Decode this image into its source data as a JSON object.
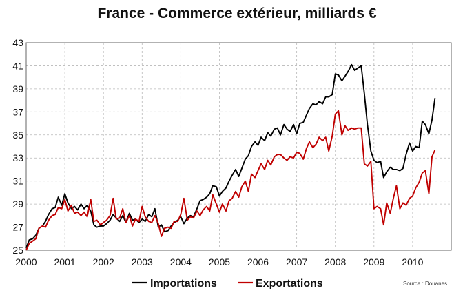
{
  "chart_data": {
    "type": "line",
    "title": "France - Commerce extérieur, milliards €",
    "xlabel": "",
    "ylabel": "",
    "xlim": [
      2000,
      2011
    ],
    "ylim": [
      25,
      43
    ],
    "x_ticks": [
      "2000",
      "2001",
      "2002",
      "2003",
      "2004",
      "2005",
      "2006",
      "2007",
      "2008",
      "2009",
      "2010"
    ],
    "y_ticks": [
      "25",
      "27",
      "29",
      "31",
      "33",
      "35",
      "37",
      "39",
      "41",
      "43"
    ],
    "grid": true,
    "legend_position": "bottom",
    "source": "Source : Douanes",
    "series": [
      {
        "name": "Importations",
        "color": "#000000",
        "points": [
          [
            2000.0,
            25.2
          ],
          [
            2000.08,
            25.9
          ],
          [
            2000.17,
            26.0
          ],
          [
            2000.25,
            26.3
          ],
          [
            2000.33,
            26.9
          ],
          [
            2000.42,
            27.1
          ],
          [
            2000.5,
            27.5
          ],
          [
            2000.58,
            28.1
          ],
          [
            2000.67,
            28.6
          ],
          [
            2000.75,
            28.7
          ],
          [
            2000.83,
            29.6
          ],
          [
            2000.92,
            28.9
          ],
          [
            2001.0,
            29.9
          ],
          [
            2001.08,
            29.1
          ],
          [
            2001.17,
            28.6
          ],
          [
            2001.25,
            28.8
          ],
          [
            2001.33,
            28.5
          ],
          [
            2001.42,
            29.0
          ],
          [
            2001.5,
            28.6
          ],
          [
            2001.58,
            28.9
          ],
          [
            2001.67,
            28.4
          ],
          [
            2001.75,
            27.2
          ],
          [
            2001.83,
            27.0
          ],
          [
            2001.92,
            27.1
          ],
          [
            2002.0,
            27.1
          ],
          [
            2002.08,
            27.3
          ],
          [
            2002.17,
            27.6
          ],
          [
            2002.25,
            28.1
          ],
          [
            2002.33,
            27.8
          ],
          [
            2002.42,
            27.5
          ],
          [
            2002.5,
            28.0
          ],
          [
            2002.58,
            27.4
          ],
          [
            2002.67,
            28.2
          ],
          [
            2002.75,
            27.6
          ],
          [
            2002.83,
            27.7
          ],
          [
            2002.92,
            27.4
          ],
          [
            2003.0,
            27.7
          ],
          [
            2003.08,
            27.5
          ],
          [
            2003.17,
            28.1
          ],
          [
            2003.25,
            27.9
          ],
          [
            2003.33,
            28.6
          ],
          [
            2003.42,
            27.0
          ],
          [
            2003.5,
            27.2
          ],
          [
            2003.58,
            26.6
          ],
          [
            2003.67,
            26.7
          ],
          [
            2003.75,
            27.1
          ],
          [
            2003.83,
            27.4
          ],
          [
            2003.92,
            27.6
          ],
          [
            2004.0,
            27.9
          ],
          [
            2004.08,
            27.3
          ],
          [
            2004.17,
            27.8
          ],
          [
            2004.25,
            28.0
          ],
          [
            2004.33,
            27.9
          ],
          [
            2004.42,
            28.6
          ],
          [
            2004.5,
            29.3
          ],
          [
            2004.58,
            29.4
          ],
          [
            2004.67,
            29.6
          ],
          [
            2004.75,
            29.9
          ],
          [
            2004.83,
            30.6
          ],
          [
            2004.92,
            30.5
          ],
          [
            2005.0,
            29.7
          ],
          [
            2005.08,
            30.1
          ],
          [
            2005.17,
            30.4
          ],
          [
            2005.25,
            31.0
          ],
          [
            2005.33,
            31.5
          ],
          [
            2005.42,
            32.0
          ],
          [
            2005.5,
            31.4
          ],
          [
            2005.58,
            32.1
          ],
          [
            2005.67,
            32.9
          ],
          [
            2005.75,
            33.2
          ],
          [
            2005.83,
            34.0
          ],
          [
            2005.92,
            34.4
          ],
          [
            2006.0,
            34.1
          ],
          [
            2006.08,
            34.8
          ],
          [
            2006.17,
            34.5
          ],
          [
            2006.25,
            35.2
          ],
          [
            2006.33,
            34.9
          ],
          [
            2006.42,
            35.5
          ],
          [
            2006.5,
            35.6
          ],
          [
            2006.58,
            35.0
          ],
          [
            2006.67,
            35.9
          ],
          [
            2006.75,
            35.5
          ],
          [
            2006.83,
            35.3
          ],
          [
            2006.92,
            35.9
          ],
          [
            2007.0,
            35.1
          ],
          [
            2007.08,
            36.0
          ],
          [
            2007.17,
            36.1
          ],
          [
            2007.25,
            36.7
          ],
          [
            2007.33,
            37.3
          ],
          [
            2007.42,
            37.7
          ],
          [
            2007.5,
            37.6
          ],
          [
            2007.58,
            37.9
          ],
          [
            2007.67,
            37.7
          ],
          [
            2007.75,
            38.3
          ],
          [
            2007.83,
            38.3
          ],
          [
            2007.92,
            38.5
          ],
          [
            2008.0,
            40.3
          ],
          [
            2008.08,
            40.2
          ],
          [
            2008.17,
            39.7
          ],
          [
            2008.25,
            40.1
          ],
          [
            2008.33,
            40.5
          ],
          [
            2008.42,
            41.1
          ],
          [
            2008.5,
            40.6
          ],
          [
            2008.58,
            40.8
          ],
          [
            2008.67,
            41.0
          ],
          [
            2008.75,
            38.6
          ],
          [
            2008.83,
            35.9
          ],
          [
            2008.92,
            33.6
          ],
          [
            2009.0,
            32.8
          ],
          [
            2009.08,
            32.6
          ],
          [
            2009.17,
            32.7
          ],
          [
            2009.25,
            31.3
          ],
          [
            2009.33,
            31.8
          ],
          [
            2009.42,
            32.2
          ],
          [
            2009.5,
            32.0
          ],
          [
            2009.58,
            32.0
          ],
          [
            2009.67,
            31.9
          ],
          [
            2009.75,
            32.1
          ],
          [
            2009.83,
            33.3
          ],
          [
            2009.92,
            34.3
          ],
          [
            2010.0,
            33.6
          ],
          [
            2010.08,
            34.0
          ],
          [
            2010.17,
            33.9
          ],
          [
            2010.25,
            36.2
          ],
          [
            2010.33,
            35.9
          ],
          [
            2010.42,
            35.1
          ],
          [
            2010.5,
            36.3
          ],
          [
            2010.58,
            38.2
          ]
        ]
      },
      {
        "name": "Exportations",
        "color": "#c00000",
        "points": [
          [
            2000.0,
            25.0
          ],
          [
            2000.08,
            25.6
          ],
          [
            2000.17,
            25.8
          ],
          [
            2000.25,
            26.0
          ],
          [
            2000.33,
            26.9
          ],
          [
            2000.42,
            27.1
          ],
          [
            2000.5,
            27.0
          ],
          [
            2000.58,
            27.6
          ],
          [
            2000.67,
            28.0
          ],
          [
            2000.75,
            28.1
          ],
          [
            2000.83,
            28.7
          ],
          [
            2000.92,
            28.6
          ],
          [
            2001.0,
            29.4
          ],
          [
            2001.08,
            28.4
          ],
          [
            2001.17,
            28.9
          ],
          [
            2001.25,
            28.2
          ],
          [
            2001.33,
            28.3
          ],
          [
            2001.42,
            28.0
          ],
          [
            2001.5,
            28.3
          ],
          [
            2001.58,
            27.9
          ],
          [
            2001.67,
            29.4
          ],
          [
            2001.75,
            27.5
          ],
          [
            2001.83,
            27.6
          ],
          [
            2001.92,
            27.2
          ],
          [
            2002.0,
            27.4
          ],
          [
            2002.08,
            27.6
          ],
          [
            2002.17,
            28.0
          ],
          [
            2002.25,
            29.5
          ],
          [
            2002.33,
            27.7
          ],
          [
            2002.42,
            27.8
          ],
          [
            2002.5,
            28.6
          ],
          [
            2002.58,
            27.4
          ],
          [
            2002.67,
            28.0
          ],
          [
            2002.75,
            27.1
          ],
          [
            2002.83,
            27.7
          ],
          [
            2002.92,
            27.5
          ],
          [
            2003.0,
            28.8
          ],
          [
            2003.08,
            27.9
          ],
          [
            2003.17,
            27.5
          ],
          [
            2003.25,
            27.4
          ],
          [
            2003.33,
            28.0
          ],
          [
            2003.42,
            27.3
          ],
          [
            2003.5,
            26.2
          ],
          [
            2003.58,
            26.9
          ],
          [
            2003.67,
            27.0
          ],
          [
            2003.75,
            26.9
          ],
          [
            2003.83,
            27.5
          ],
          [
            2003.92,
            27.5
          ],
          [
            2004.0,
            28.1
          ],
          [
            2004.08,
            29.5
          ],
          [
            2004.17,
            27.6
          ],
          [
            2004.25,
            27.9
          ],
          [
            2004.33,
            27.8
          ],
          [
            2004.42,
            28.4
          ],
          [
            2004.5,
            28.0
          ],
          [
            2004.58,
            28.5
          ],
          [
            2004.67,
            28.8
          ],
          [
            2004.75,
            28.4
          ],
          [
            2004.83,
            29.8
          ],
          [
            2004.92,
            29.0
          ],
          [
            2005.0,
            28.3
          ],
          [
            2005.08,
            29.0
          ],
          [
            2005.17,
            28.4
          ],
          [
            2005.25,
            29.3
          ],
          [
            2005.33,
            29.5
          ],
          [
            2005.42,
            30.1
          ],
          [
            2005.5,
            29.6
          ],
          [
            2005.58,
            30.5
          ],
          [
            2005.67,
            31.0
          ],
          [
            2005.75,
            30.1
          ],
          [
            2005.83,
            31.6
          ],
          [
            2005.92,
            31.3
          ],
          [
            2006.0,
            31.9
          ],
          [
            2006.08,
            32.5
          ],
          [
            2006.17,
            32.0
          ],
          [
            2006.25,
            32.8
          ],
          [
            2006.33,
            32.4
          ],
          [
            2006.42,
            33.1
          ],
          [
            2006.5,
            33.3
          ],
          [
            2006.58,
            33.3
          ],
          [
            2006.67,
            33.0
          ],
          [
            2006.75,
            32.8
          ],
          [
            2006.83,
            33.1
          ],
          [
            2006.92,
            33.0
          ],
          [
            2007.0,
            33.5
          ],
          [
            2007.08,
            33.4
          ],
          [
            2007.17,
            32.9
          ],
          [
            2007.25,
            33.8
          ],
          [
            2007.33,
            34.4
          ],
          [
            2007.42,
            33.9
          ],
          [
            2007.5,
            34.2
          ],
          [
            2007.58,
            34.8
          ],
          [
            2007.67,
            34.5
          ],
          [
            2007.75,
            34.8
          ],
          [
            2007.83,
            33.6
          ],
          [
            2007.92,
            34.9
          ],
          [
            2008.0,
            36.8
          ],
          [
            2008.08,
            37.1
          ],
          [
            2008.17,
            35.0
          ],
          [
            2008.25,
            35.8
          ],
          [
            2008.33,
            35.4
          ],
          [
            2008.42,
            35.6
          ],
          [
            2008.5,
            35.5
          ],
          [
            2008.58,
            35.6
          ],
          [
            2008.67,
            35.6
          ],
          [
            2008.75,
            32.5
          ],
          [
            2008.83,
            32.3
          ],
          [
            2008.92,
            32.7
          ],
          [
            2009.0,
            28.6
          ],
          [
            2009.08,
            28.8
          ],
          [
            2009.17,
            28.6
          ],
          [
            2009.25,
            27.2
          ],
          [
            2009.33,
            29.1
          ],
          [
            2009.42,
            28.2
          ],
          [
            2009.5,
            29.5
          ],
          [
            2009.58,
            30.6
          ],
          [
            2009.67,
            28.6
          ],
          [
            2009.75,
            29.1
          ],
          [
            2009.83,
            28.9
          ],
          [
            2009.92,
            29.5
          ],
          [
            2010.0,
            29.7
          ],
          [
            2010.08,
            30.4
          ],
          [
            2010.17,
            30.9
          ],
          [
            2010.25,
            31.7
          ],
          [
            2010.33,
            31.9
          ],
          [
            2010.42,
            29.9
          ],
          [
            2010.5,
            33.1
          ],
          [
            2010.58,
            33.7
          ]
        ]
      }
    ]
  }
}
